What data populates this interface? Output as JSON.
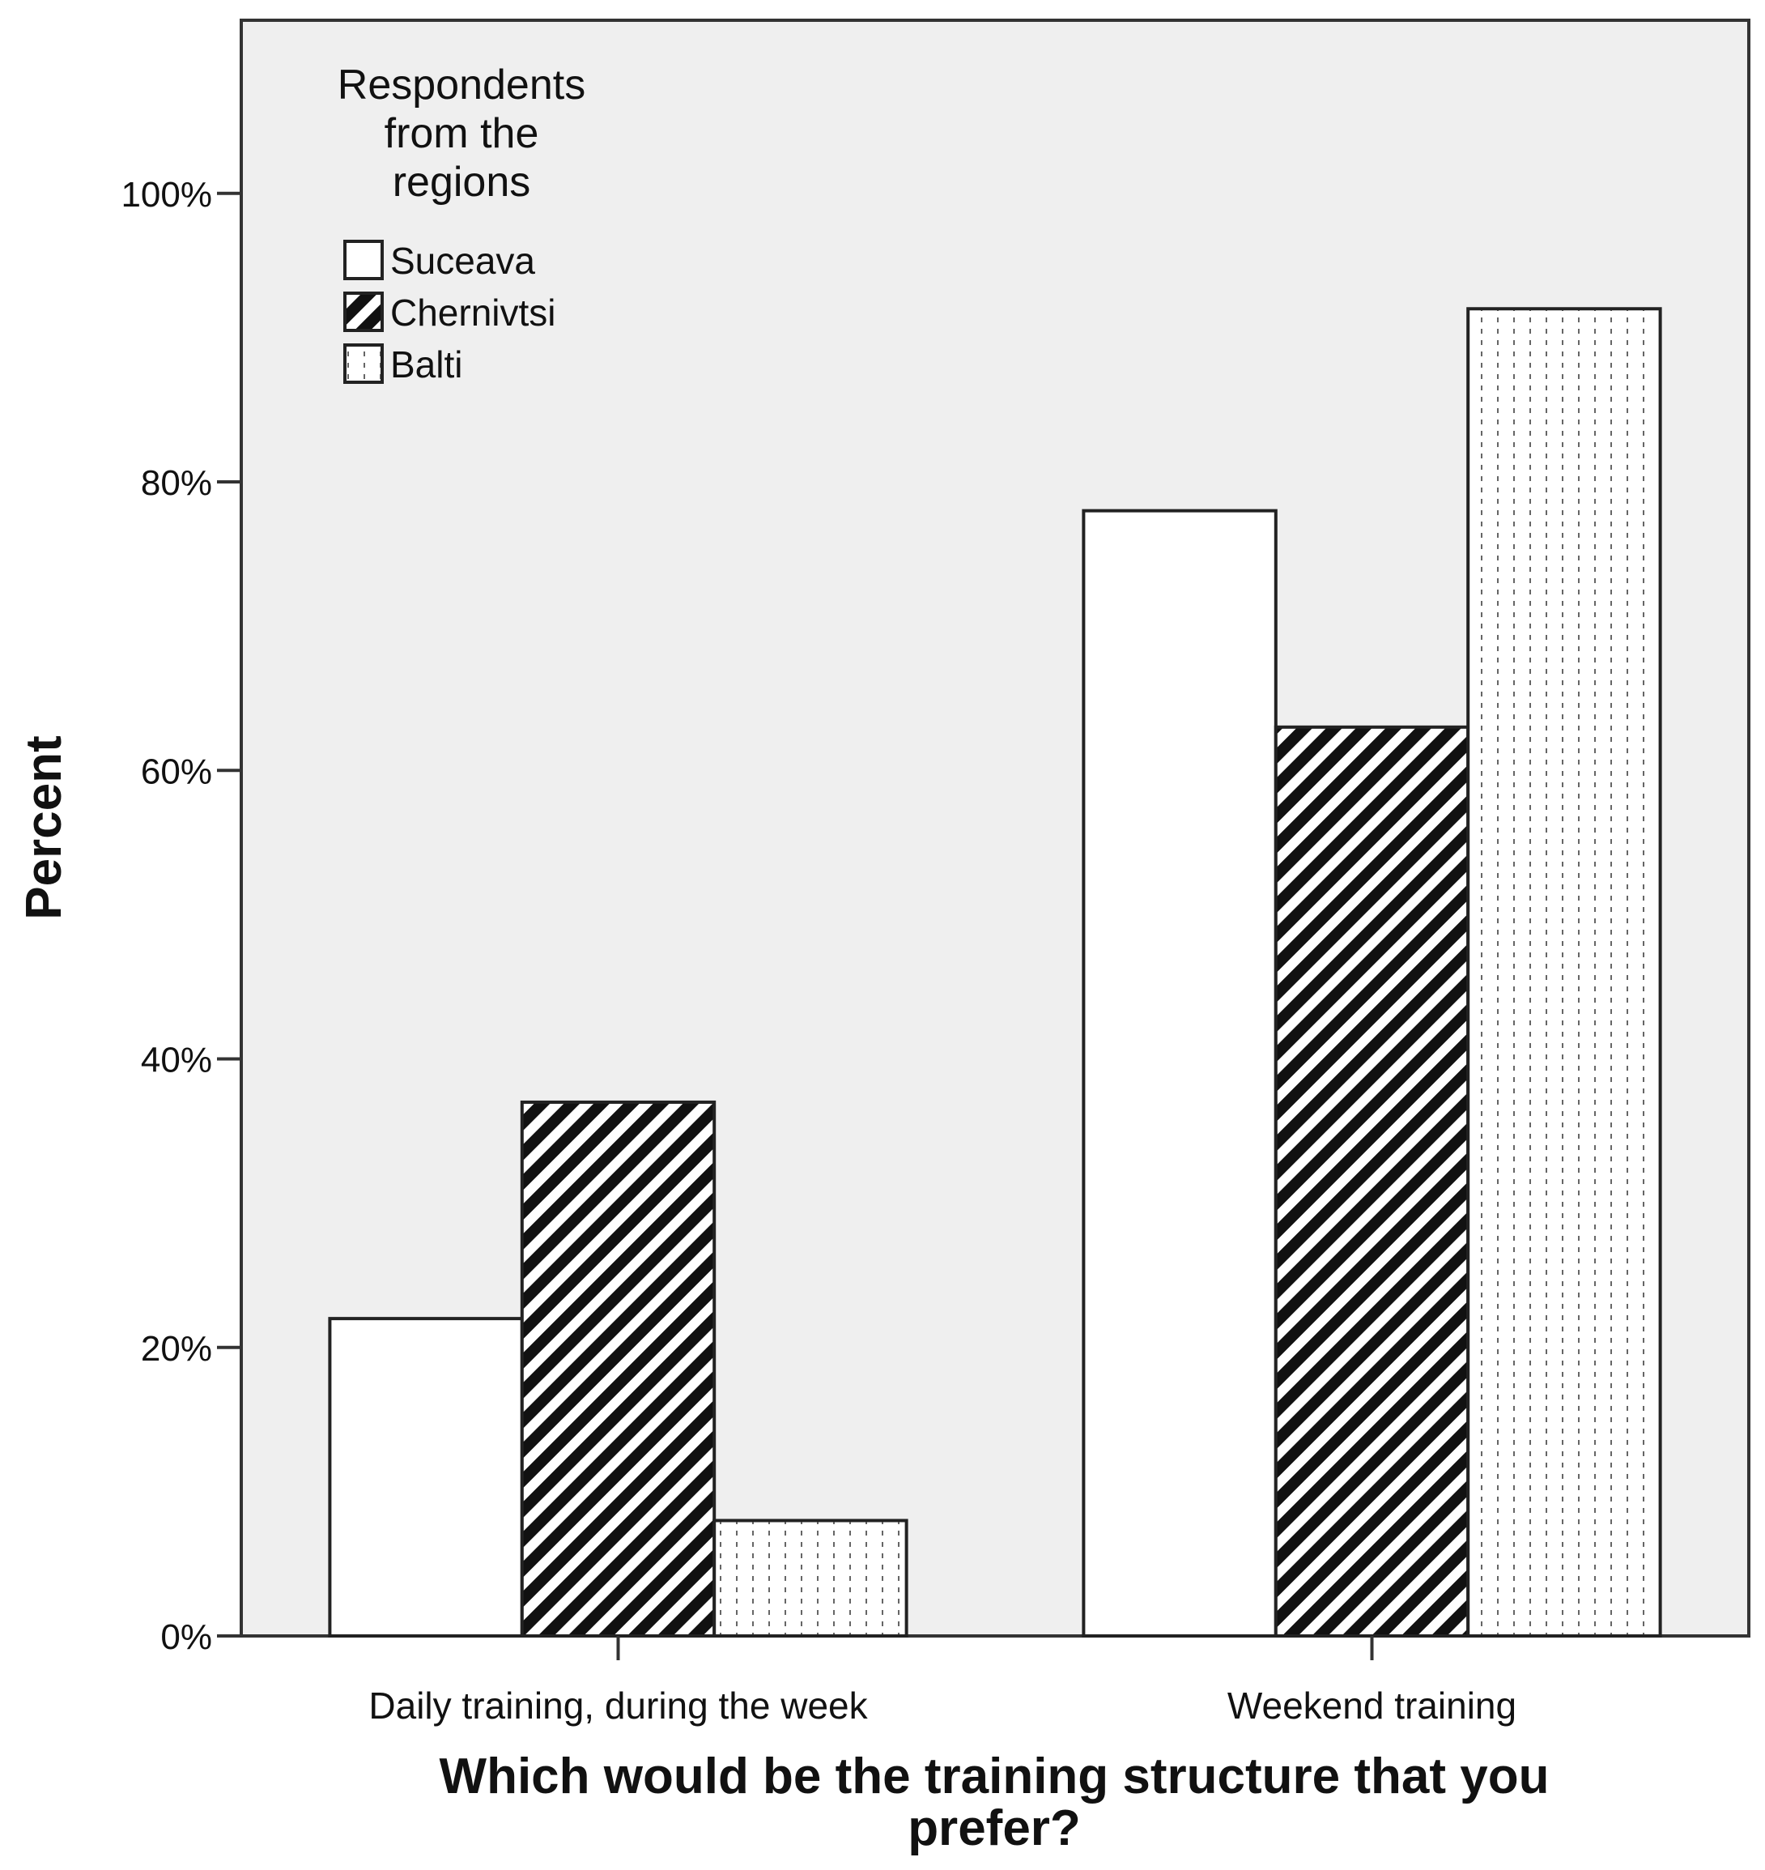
{
  "chart_data": {
    "type": "bar",
    "categories": [
      "Daily training, during the week",
      "Weekend training"
    ],
    "series": [
      {
        "name": "Suceava",
        "values": [
          22,
          78
        ],
        "pattern": "white"
      },
      {
        "name": "Chernivtsi",
        "values": [
          37,
          63
        ],
        "pattern": "diagonal"
      },
      {
        "name": "Balti",
        "values": [
          8,
          92
        ],
        "pattern": "dotted"
      }
    ],
    "ylabel": "Percent",
    "xlabel_lines": [
      "Which would be the training structure that you",
      "prefer?"
    ],
    "legend_title_lines": [
      "Respondents",
      "from the",
      "regions"
    ],
    "legend_position": "top-left",
    "ylim": [
      0,
      112
    ],
    "yticks": [
      0,
      20,
      40,
      60,
      80,
      100
    ],
    "ytick_labels": [
      "0%",
      "20%",
      "40%",
      "60%",
      "80%",
      "100%"
    ],
    "grid": false,
    "plot_background": "#efefef"
  }
}
